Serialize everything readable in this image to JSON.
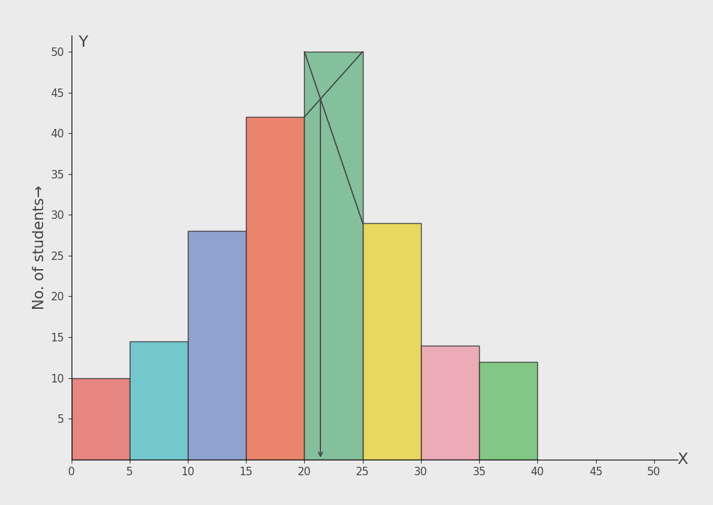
{
  "chart_data": {
    "type": "histogram",
    "y_label": "No. of students→",
    "x_axis_letter": "X",
    "y_axis_letter": "Y",
    "bins": [
      0,
      5,
      10,
      15,
      20,
      25,
      30,
      35,
      40
    ],
    "counts": [
      10,
      14.5,
      28,
      42,
      50,
      29,
      14,
      12
    ],
    "colors": [
      "#e8766f",
      "#5fc3c9",
      "#7f95cc",
      "#ea7257",
      "#72b98f",
      "#e9d545",
      "#eba1ae",
      "#70c174"
    ],
    "xlim": [
      0,
      52
    ],
    "ylim": [
      0,
      52
    ],
    "xticks": [
      0,
      5,
      10,
      15,
      20,
      25,
      30,
      35,
      40,
      45,
      50
    ],
    "yticks": [
      5,
      10,
      15,
      20,
      25,
      30,
      35,
      40,
      45,
      50
    ],
    "grid": false
  }
}
